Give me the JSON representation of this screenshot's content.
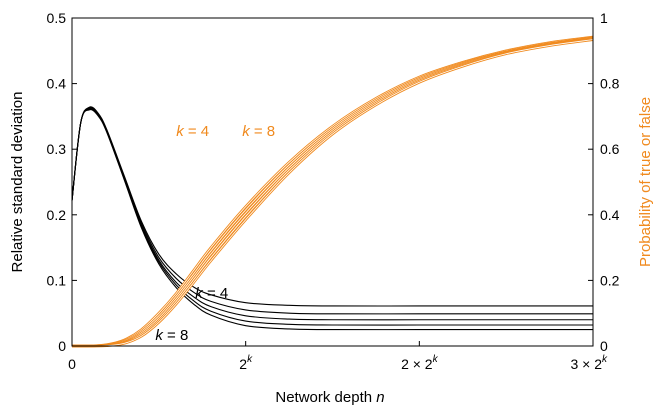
{
  "chart_data": {
    "type": "line",
    "xlabel_text": "Network depth",
    "xlabel_var": "n",
    "ylabel": "Relative standard deviation",
    "ylabel_right": "Probability of true or false",
    "xlim": [
      0,
      3
    ],
    "ylim": [
      0,
      0.5
    ],
    "ylim_right": [
      0,
      1
    ],
    "x_unit": "2^k",
    "x_ticks": [
      {
        "value": 0,
        "prefix": "0",
        "sup": ""
      },
      {
        "value": 1,
        "prefix": "2",
        "sup": "k"
      },
      {
        "value": 2,
        "prefix": "2 × 2",
        "sup": "k"
      },
      {
        "value": 3,
        "prefix": "3 × 2",
        "sup": "k"
      }
    ],
    "y_ticks": [
      "0",
      "0.1",
      "0.2",
      "0.3",
      "0.4",
      "0.5"
    ],
    "y_ticks_right": [
      "0",
      "0.2",
      "0.4",
      "0.6",
      "0.8",
      "1"
    ],
    "std_series_color": "#000000",
    "prob_series_color": "#f08a1e",
    "std_series": [
      {
        "x": [
          0,
          0.05,
          0.1,
          0.15,
          0.2,
          0.3,
          0.4,
          0.5,
          0.6,
          0.7,
          0.8,
          1.0,
          1.25,
          1.5,
          2.0,
          2.5,
          3.0
        ],
        "y": [
          0.222,
          0.34,
          0.364,
          0.355,
          0.33,
          0.26,
          0.19,
          0.14,
          0.11,
          0.09,
          0.078,
          0.066,
          0.062,
          0.061,
          0.061,
          0.061,
          0.061
        ]
      },
      {
        "x": [
          0,
          0.05,
          0.1,
          0.15,
          0.2,
          0.3,
          0.4,
          0.5,
          0.6,
          0.7,
          0.8,
          1.0,
          1.25,
          1.5,
          2.0,
          2.5,
          3.0
        ],
        "y": [
          0.222,
          0.34,
          0.363,
          0.354,
          0.329,
          0.258,
          0.187,
          0.135,
          0.103,
          0.082,
          0.068,
          0.055,
          0.05,
          0.049,
          0.049,
          0.049,
          0.049
        ]
      },
      {
        "x": [
          0,
          0.05,
          0.1,
          0.15,
          0.2,
          0.3,
          0.4,
          0.5,
          0.6,
          0.7,
          0.8,
          1.0,
          1.25,
          1.5,
          2.0,
          2.5,
          3.0
        ],
        "y": [
          0.222,
          0.34,
          0.362,
          0.353,
          0.328,
          0.256,
          0.184,
          0.131,
          0.097,
          0.075,
          0.06,
          0.046,
          0.041,
          0.04,
          0.04,
          0.04,
          0.04
        ]
      },
      {
        "x": [
          0,
          0.05,
          0.1,
          0.15,
          0.2,
          0.3,
          0.4,
          0.5,
          0.6,
          0.7,
          0.8,
          1.0,
          1.25,
          1.5,
          2.0,
          2.5,
          3.0
        ],
        "y": [
          0.222,
          0.34,
          0.361,
          0.352,
          0.327,
          0.255,
          0.182,
          0.128,
          0.093,
          0.069,
          0.053,
          0.038,
          0.033,
          0.032,
          0.032,
          0.032,
          0.032
        ]
      },
      {
        "x": [
          0,
          0.05,
          0.1,
          0.15,
          0.2,
          0.3,
          0.4,
          0.5,
          0.6,
          0.7,
          0.8,
          1.0,
          1.25,
          1.5,
          2.0,
          2.5,
          3.0
        ],
        "y": [
          0.222,
          0.34,
          0.36,
          0.351,
          0.326,
          0.254,
          0.18,
          0.125,
          0.089,
          0.064,
          0.047,
          0.031,
          0.026,
          0.025,
          0.025,
          0.025,
          0.025
        ]
      }
    ],
    "prob_series": [
      {
        "x": [
          0,
          0.1,
          0.2,
          0.3,
          0.4,
          0.5,
          0.6,
          0.7,
          0.8,
          1.0,
          1.25,
          1.5,
          1.75,
          2.0,
          2.25,
          2.5,
          2.75,
          3.0
        ],
        "y": [
          0,
          0.0,
          0.004,
          0.018,
          0.05,
          0.1,
          0.16,
          0.23,
          0.3,
          0.425,
          0.56,
          0.67,
          0.755,
          0.82,
          0.865,
          0.9,
          0.925,
          0.942
        ]
      },
      {
        "x": [
          0,
          0.1,
          0.2,
          0.3,
          0.4,
          0.5,
          0.6,
          0.7,
          0.8,
          1.0,
          1.25,
          1.5,
          1.75,
          2.0,
          2.25,
          2.5,
          2.75,
          3.0
        ],
        "y": [
          0,
          0.0,
          0.003,
          0.015,
          0.045,
          0.092,
          0.152,
          0.22,
          0.29,
          0.415,
          0.552,
          0.664,
          0.75,
          0.816,
          0.862,
          0.897,
          0.922,
          0.94
        ]
      },
      {
        "x": [
          0,
          0.1,
          0.2,
          0.3,
          0.4,
          0.5,
          0.6,
          0.7,
          0.8,
          1.0,
          1.25,
          1.5,
          1.75,
          2.0,
          2.25,
          2.5,
          2.75,
          3.0
        ],
        "y": [
          0,
          0.0,
          0.002,
          0.012,
          0.04,
          0.085,
          0.144,
          0.211,
          0.28,
          0.405,
          0.544,
          0.658,
          0.745,
          0.812,
          0.859,
          0.895,
          0.92,
          0.938
        ]
      },
      {
        "x": [
          0,
          0.1,
          0.2,
          0.3,
          0.4,
          0.5,
          0.6,
          0.7,
          0.8,
          1.0,
          1.25,
          1.5,
          1.75,
          2.0,
          2.25,
          2.5,
          2.75,
          3.0
        ],
        "y": [
          0,
          0.0,
          0.002,
          0.01,
          0.035,
          0.078,
          0.136,
          0.202,
          0.27,
          0.395,
          0.536,
          0.652,
          0.74,
          0.808,
          0.856,
          0.893,
          0.918,
          0.936
        ]
      },
      {
        "x": [
          0,
          0.1,
          0.2,
          0.3,
          0.4,
          0.5,
          0.6,
          0.7,
          0.8,
          1.0,
          1.25,
          1.5,
          1.75,
          2.0,
          2.25,
          2.5,
          2.75,
          3.0
        ],
        "y": [
          0,
          0.0,
          0.001,
          0.008,
          0.03,
          0.072,
          0.128,
          0.193,
          0.26,
          0.385,
          0.528,
          0.646,
          0.735,
          0.804,
          0.853,
          0.891,
          0.916,
          0.934
        ]
      }
    ],
    "annotations": [
      {
        "var": "k",
        "rest": " = 4",
        "x": 0.71,
        "y": 0.073,
        "color": "black"
      },
      {
        "var": "k",
        "rest": " = 8",
        "x": 0.48,
        "y": 0.009,
        "color": "black"
      },
      {
        "var": "k",
        "rest": " = 4",
        "x": 0.6,
        "y": 0.64,
        "axis": "right",
        "color": "orange"
      },
      {
        "var": "k",
        "rest": " = 8",
        "x": 0.98,
        "y": 0.64,
        "axis": "right",
        "color": "orange"
      }
    ]
  }
}
